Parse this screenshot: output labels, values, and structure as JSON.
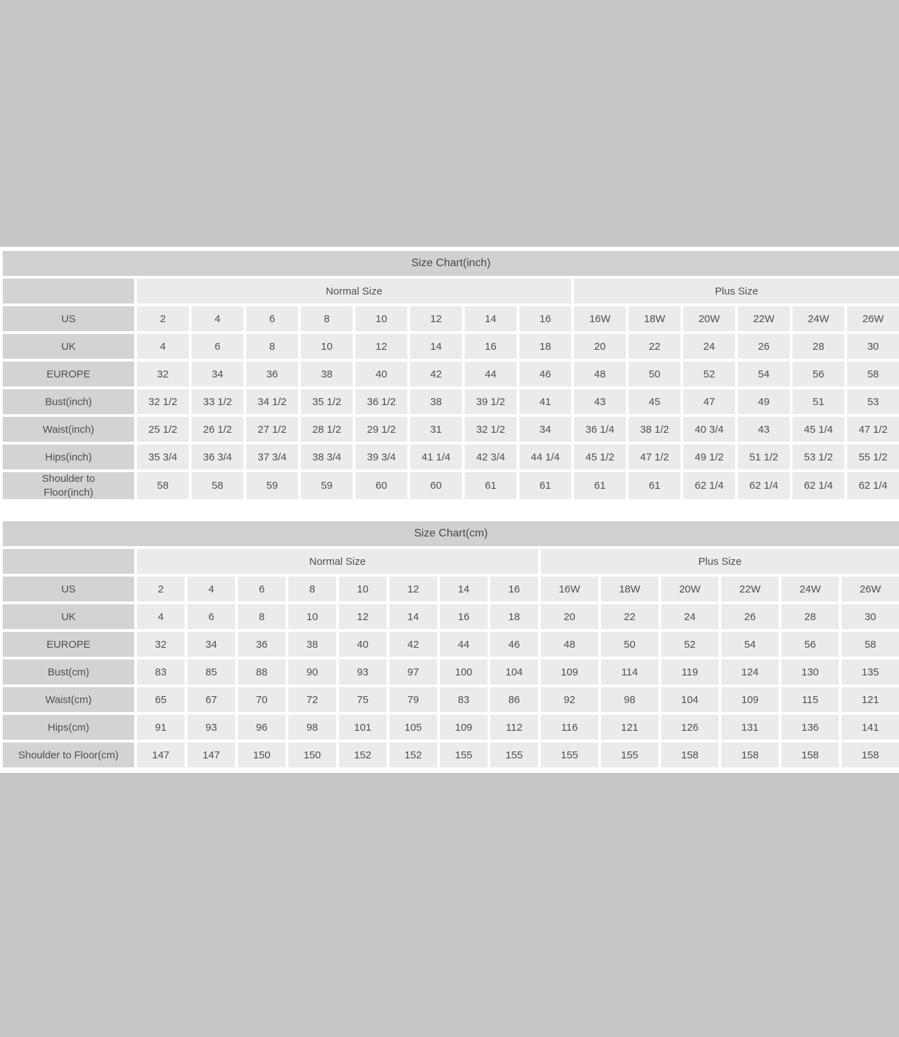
{
  "chart_data": [
    {
      "type": "table",
      "title": "Size Chart(inch)",
      "column_groups": [
        {
          "label": "Normal Size",
          "span": 8
        },
        {
          "label": "Plus Size",
          "span": 6
        }
      ],
      "rows": [
        {
          "label": "US",
          "values": [
            "2",
            "4",
            "6",
            "8",
            "10",
            "12",
            "14",
            "16",
            "16W",
            "18W",
            "20W",
            "22W",
            "24W",
            "26W"
          ]
        },
        {
          "label": "UK",
          "values": [
            "4",
            "6",
            "8",
            "10",
            "12",
            "14",
            "16",
            "18",
            "20",
            "22",
            "24",
            "26",
            "28",
            "30"
          ]
        },
        {
          "label": "EUROPE",
          "values": [
            "32",
            "34",
            "36",
            "38",
            "40",
            "42",
            "44",
            "46",
            "48",
            "50",
            "52",
            "54",
            "56",
            "58"
          ]
        },
        {
          "label": "Bust(inch)",
          "values": [
            "32 1/2",
            "33 1/2",
            "34 1/2",
            "35 1/2",
            "36 1/2",
            "38",
            "39 1/2",
            "41",
            "43",
            "45",
            "47",
            "49",
            "51",
            "53"
          ]
        },
        {
          "label": "Waist(inch)",
          "values": [
            "25 1/2",
            "26 1/2",
            "27 1/2",
            "28 1/2",
            "29 1/2",
            "31",
            "32 1/2",
            "34",
            "36 1/4",
            "38 1/2",
            "40 3/4",
            "43",
            "45 1/4",
            "47 1/2"
          ]
        },
        {
          "label": "Hips(inch)",
          "values": [
            "35 3/4",
            "36 3/4",
            "37 3/4",
            "38 3/4",
            "39 3/4",
            "41 1/4",
            "42 3/4",
            "44 1/4",
            "45 1/2",
            "47 1/2",
            "49 1/2",
            "51 1/2",
            "53 1/2",
            "55 1/2"
          ]
        },
        {
          "label": "Shoulder to Floor(inch)",
          "values": [
            "58",
            "58",
            "59",
            "59",
            "60",
            "60",
            "61",
            "61",
            "61",
            "61",
            "62 1/4",
            "62 1/4",
            "62 1/4",
            "62 1/4"
          ]
        }
      ]
    },
    {
      "type": "table",
      "title": "Size Chart(cm)",
      "column_groups": [
        {
          "label": "Normal Size",
          "span": 8
        },
        {
          "label": "Plus Size",
          "span": 6
        }
      ],
      "rows": [
        {
          "label": "US",
          "values": [
            "2",
            "4",
            "6",
            "8",
            "10",
            "12",
            "14",
            "16",
            "16W",
            "18W",
            "20W",
            "22W",
            "24W",
            "26W"
          ]
        },
        {
          "label": "UK",
          "values": [
            "4",
            "6",
            "8",
            "10",
            "12",
            "14",
            "16",
            "18",
            "20",
            "22",
            "24",
            "26",
            "28",
            "30"
          ]
        },
        {
          "label": "EUROPE",
          "values": [
            "32",
            "34",
            "36",
            "38",
            "40",
            "42",
            "44",
            "46",
            "48",
            "50",
            "52",
            "54",
            "56",
            "58"
          ]
        },
        {
          "label": "Bust(cm)",
          "values": [
            "83",
            "85",
            "88",
            "90",
            "93",
            "97",
            "100",
            "104",
            "109",
            "114",
            "119",
            "124",
            "130",
            "135"
          ]
        },
        {
          "label": "Waist(cm)",
          "values": [
            "65",
            "67",
            "70",
            "72",
            "75",
            "79",
            "83",
            "86",
            "92",
            "98",
            "104",
            "109",
            "115",
            "121"
          ]
        },
        {
          "label": "Hips(cm)",
          "values": [
            "91",
            "93",
            "96",
            "98",
            "101",
            "105",
            "109",
            "112",
            "116",
            "121",
            "126",
            "131",
            "136",
            "141"
          ]
        },
        {
          "label": "Shoulder to Floor(cm)",
          "values": [
            "147",
            "147",
            "150",
            "150",
            "152",
            "152",
            "155",
            "155",
            "155",
            "155",
            "158",
            "158",
            "158",
            "158"
          ]
        }
      ]
    }
  ],
  "colors": {
    "page_background": "#c7c7c7",
    "sheet_background": "#ffffff",
    "title_bar": "#d1d1d1",
    "label_cell": "#d3d3d3",
    "data_cell": "#ebebeb",
    "text": "#4e4e4e"
  }
}
